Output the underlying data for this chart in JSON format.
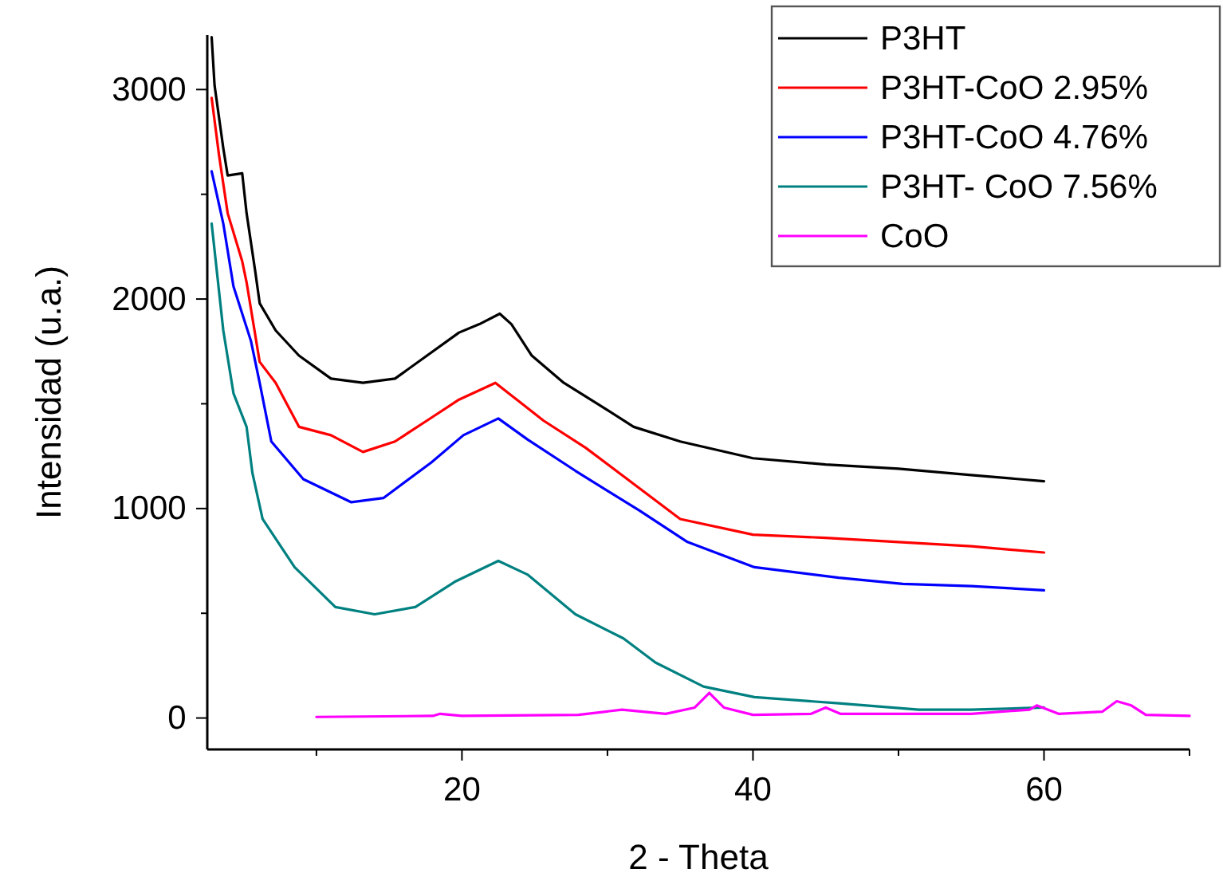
{
  "chart_data": {
    "type": "line",
    "xlabel": "2 - Theta",
    "ylabel": "Intensidad  (u.a.)",
    "xlim": [
      2.5,
      70
    ],
    "ylim": [
      -150,
      3260
    ],
    "xticks": [
      {
        "value": 10,
        "label": null
      },
      20,
      {
        "value": 30,
        "label": null
      },
      40,
      {
        "value": 50,
        "label": null
      },
      60,
      {
        "value": 70,
        "label": null
      }
    ],
    "yticks": [
      0,
      {
        "value": 500,
        "label": null
      },
      1000,
      {
        "value": 1500,
        "label": null
      },
      2000,
      {
        "value": 2500,
        "label": null
      },
      3000
    ],
    "grid": false,
    "legend": "top right",
    "marker": "none",
    "line_style": "solid",
    "series": [
      {
        "name": "P3HT",
        "color": "#000000",
        "x": [
          2.8,
          3.0,
          3.6,
          3.9,
          4.9,
          5.2,
          5.8,
          6.1,
          7.2,
          8.8,
          11,
          13.2,
          15.4,
          17.6,
          19.8,
          21.2,
          22.6,
          23.4,
          24.8,
          27,
          30,
          31.8,
          35,
          40,
          45,
          50,
          55,
          60
        ],
        "values": [
          3250,
          3020,
          2720,
          2590,
          2600,
          2410,
          2130,
          1980,
          1850,
          1730,
          1620,
          1600,
          1620,
          1730,
          1840,
          1880,
          1930,
          1880,
          1730,
          1600,
          1470,
          1390,
          1320,
          1240,
          1210,
          1190,
          1160,
          1130
        ]
      },
      {
        "name": "P3HT-CoO 2.95%",
        "color": "#ff0000",
        "x": [
          2.8,
          3.3,
          3.9,
          4.9,
          5.2,
          6.1,
          7.2,
          8.8,
          11,
          13.2,
          15.4,
          17.6,
          19.8,
          22.3,
          23.4,
          25.6,
          28.5,
          35,
          40,
          45,
          50,
          55,
          60
        ],
        "values": [
          2960,
          2690,
          2410,
          2180,
          2080,
          1700,
          1600,
          1390,
          1350,
          1270,
          1320,
          1420,
          1520,
          1600,
          1540,
          1420,
          1290,
          950,
          875,
          860,
          840,
          820,
          790
        ]
      },
      {
        "name": "P3HT-CoO 4.76%",
        "color": "#0000ff",
        "x": [
          2.8,
          3.6,
          4.3,
          5.5,
          6.1,
          6.9,
          9.1,
          12.4,
          14.6,
          17.9,
          20.1,
          22.5,
          24.5,
          27.8,
          32.2,
          35.5,
          40.1,
          45.9,
          50.3,
          55,
          60
        ],
        "values": [
          2610,
          2360,
          2060,
          1800,
          1600,
          1320,
          1140,
          1030,
          1050,
          1220,
          1350,
          1430,
          1330,
          1180,
          990,
          840,
          720,
          670,
          640,
          630,
          610
        ]
      },
      {
        "name": "P3HT- CoO 7.56%",
        "color": "#008080",
        "x": [
          2.8,
          3.6,
          4.3,
          5.2,
          5.6,
          6.3,
          8.5,
          11.3,
          14,
          16.8,
          19.5,
          22.5,
          24.5,
          27.8,
          31.1,
          33.3,
          36.6,
          40.1,
          45.9,
          51.4,
          55,
          60
        ],
        "values": [
          2360,
          1850,
          1550,
          1390,
          1170,
          950,
          720,
          530,
          495,
          530,
          650,
          750,
          685,
          495,
          380,
          265,
          150,
          100,
          70,
          40,
          40,
          50
        ]
      },
      {
        "name": "CoO",
        "color": "#ff00ff",
        "x": [
          10,
          18,
          18.5,
          20,
          28,
          31,
          34,
          36,
          37,
          38,
          40,
          44,
          45,
          46,
          55,
          59,
          59.5,
          61,
          64,
          65,
          66,
          67,
          70
        ],
        "values": [
          5,
          10,
          20,
          10,
          15,
          40,
          20,
          50,
          120,
          50,
          15,
          20,
          50,
          20,
          20,
          40,
          60,
          20,
          30,
          80,
          60,
          15,
          10
        ]
      }
    ]
  }
}
